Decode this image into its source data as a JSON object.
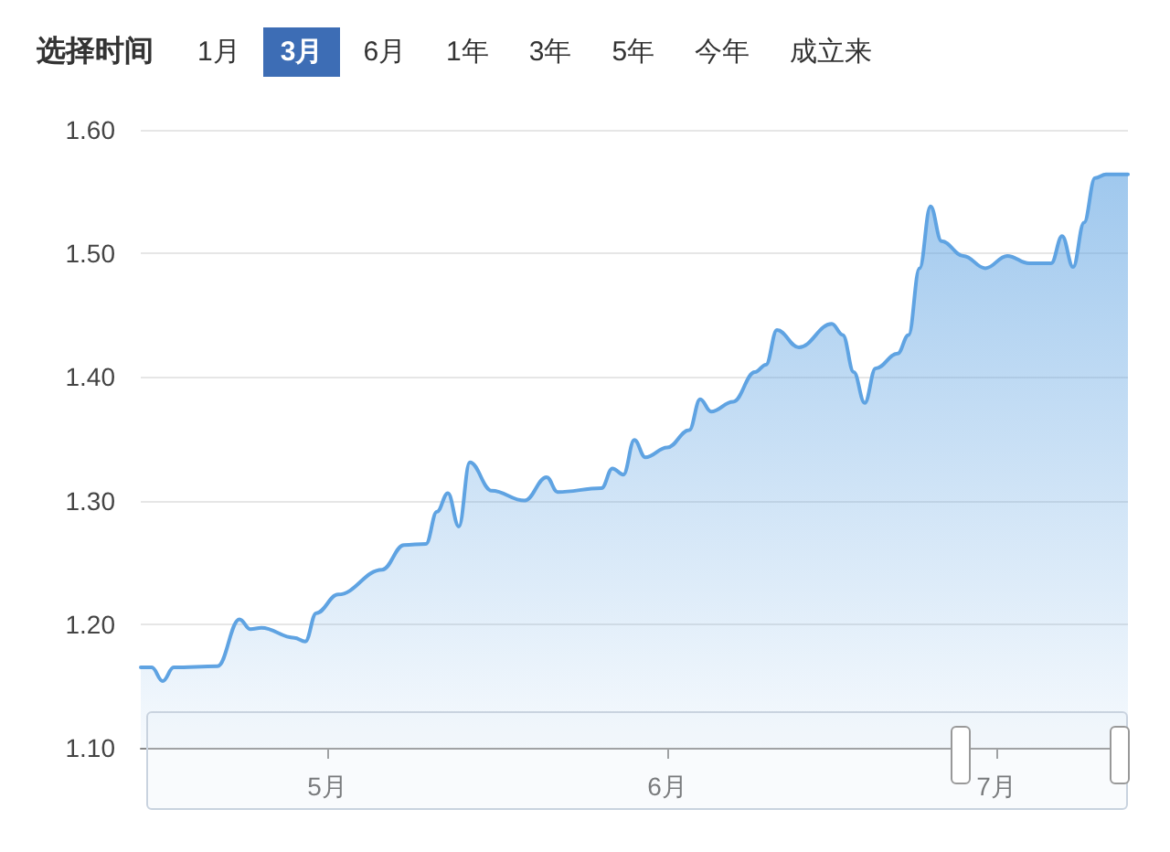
{
  "chart_data": {
    "type": "area",
    "annotations": [
      "选择时间",
      "1月",
      "3月",
      "6月",
      "1年",
      "3年",
      "5年",
      "今年",
      "成立来"
    ],
    "x": [
      "--04-14",
      "--04-15",
      "--04-16",
      "--04-17",
      "--04-21",
      "--04-23",
      "--04-24",
      "--04-25",
      "--04-28",
      "--04-29",
      "--04-30",
      "--05-02",
      "--05-06",
      "--05-08",
      "--05-10",
      "--05-11",
      "--05-12",
      "--05-13",
      "--05-14",
      "--05-16",
      "--05-19",
      "--05-21",
      "--05-22",
      "--05-26",
      "--05-27",
      "--05-28",
      "--05-29",
      "--05-30",
      "--06-01",
      "--06-03",
      "--06-04",
      "--06-05",
      "--06-07",
      "--06-09",
      "--06-10",
      "--06-11",
      "--06-13",
      "--06-16",
      "--06-17",
      "--06-18",
      "--06-19",
      "--06-20",
      "--06-22",
      "--06-23",
      "--06-24",
      "--06-25",
      "--06-26",
      "--06-28",
      "--06-30",
      "--07-02",
      "--07-04",
      "--07-06",
      "--07-07",
      "--07-08",
      "--07-09",
      "--07-10",
      "--07-11",
      "--07-13"
    ],
    "series": [
      {
        "color": "#5fa3e2",
        "values": [
          1.165,
          1.165,
          1.154,
          1.165,
          1.166,
          1.204,
          1.196,
          1.197,
          1.189,
          1.186,
          1.209,
          1.224,
          1.244,
          1.264,
          1.265,
          1.291,
          1.306,
          1.279,
          1.331,
          1.308,
          1.3,
          1.319,
          1.307,
          1.31,
          1.326,
          1.321,
          1.349,
          1.335,
          1.343,
          1.357,
          1.382,
          1.372,
          1.38,
          1.404,
          1.41,
          1.438,
          1.424,
          1.443,
          1.434,
          1.404,
          1.379,
          1.407,
          1.419,
          1.434,
          1.488,
          1.538,
          1.51,
          1.498,
          1.488,
          1.498,
          1.492,
          1.492,
          1.514,
          1.489,
          1.525,
          1.561,
          1.564,
          1.564
        ]
      }
    ],
    "xlim": [
      "--04-14",
      "--07-13"
    ],
    "xticks": [
      {
        "value": "--05-01",
        "label": "5月"
      },
      {
        "value": "--06-01",
        "label": "6月"
      },
      {
        "value": "--07-01",
        "label": "7月"
      }
    ],
    "ylim": [
      1.1,
      1.6
    ],
    "yticks": [
      {
        "value": 1.1,
        "label": "1.10"
      },
      {
        "value": 1.2,
        "label": "1.20"
      },
      {
        "value": 1.3,
        "label": "1.30"
      },
      {
        "value": 1.4,
        "label": "1.40"
      },
      {
        "value": 1.5,
        "label": "1.50"
      },
      {
        "value": 1.6,
        "label": "1.60"
      }
    ],
    "grid": "y",
    "marker": "none",
    "line_style": "solid"
  }
}
